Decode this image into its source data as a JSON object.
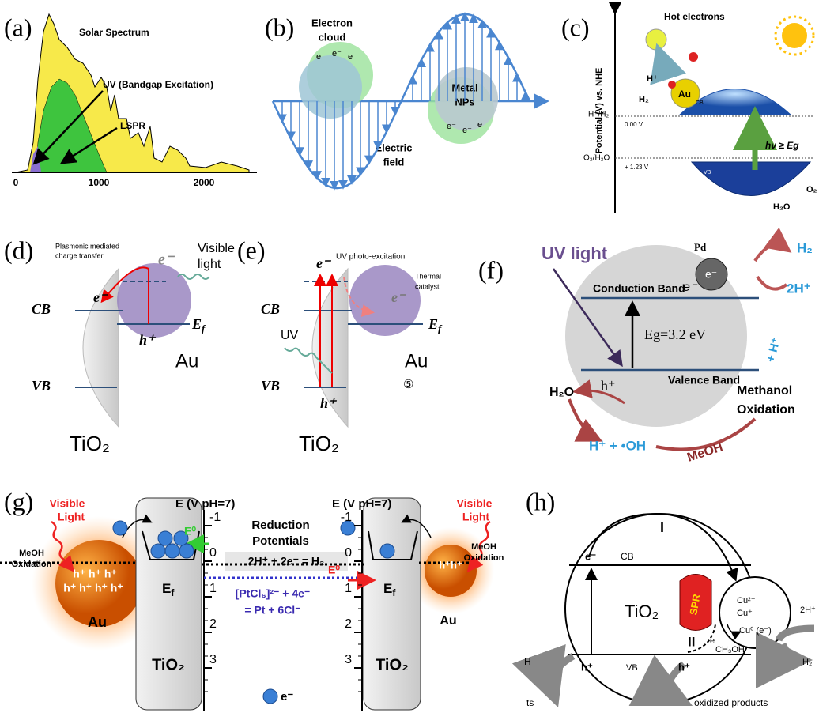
{
  "a": {
    "label": "(a)",
    "title": "Solar Spectrum",
    "uv": "UV (Bandgap Excitation)",
    "lspr": "LSPR",
    "ticks": [
      0,
      1000,
      2000
    ]
  },
  "b": {
    "label": "(b)",
    "cloud": [
      "Electron",
      "cloud"
    ],
    "field": [
      "Electric",
      "field"
    ],
    "nps": [
      "Metal",
      "NPs"
    ],
    "electron": "e⁻"
  },
  "c": {
    "label": "(c)",
    "hot": "Hot electrons",
    "h_plus": "H⁺",
    "h2": "H₂",
    "au": "Au",
    "cb": "CB",
    "axis": "Potential (V) vs. NHE",
    "h_couple": "H⁺/H₂",
    "h_pot": "0.00 V",
    "o_couple": "O₂/H₂O",
    "o_pot": "+ 1.23 V",
    "photon": "hν ≥ Eg",
    "vb": "VB",
    "o2": "O₂",
    "h2o": "H₂O"
  },
  "d": {
    "label": "(d)",
    "note": [
      "Plasmonic mediated",
      "charge transfer"
    ],
    "light": [
      "Visible",
      "light"
    ],
    "e_gray": "e⁻",
    "e_cb": "e⁻",
    "cb": "CB",
    "vb": "VB",
    "hole": "h⁺",
    "ef": [
      "E",
      "f"
    ],
    "metal": "Au",
    "semi": "TiO₂"
  },
  "e": {
    "label": "(e)",
    "uv_exc": "UV photo-excitation",
    "thermal": [
      "Thermal",
      "catalyst"
    ],
    "electron": "e⁻",
    "e_au": "e⁻",
    "cb": "CB",
    "vb": "VB",
    "uv": "UV",
    "hole": "h⁺",
    "ef": [
      "E",
      "f"
    ],
    "metal": "Au",
    "mark": "⑤",
    "semi": "TiO₂"
  },
  "f": {
    "label": "(f)",
    "uv": "UV light",
    "pd": "Pd",
    "h2": "H₂",
    "h_ions": "2H⁺",
    "cb": "Conduction Band",
    "e_cb": "e⁻",
    "e_pd": "e⁻",
    "gap": "Eg=3.2 eV",
    "vb": "Valence Band",
    "hole": "h⁺",
    "water": "H₂O",
    "methanol": [
      "Methanol",
      "Oxidation"
    ],
    "proton": "+ H⁺",
    "products": "H⁺ + •OH",
    "meoh": "MeOH"
  },
  "g": {
    "label": "(g)",
    "light": [
      "Visible",
      "Light"
    ],
    "axis": "E (V pH=7)",
    "scale": [
      -1,
      0,
      1,
      2,
      3
    ],
    "title": [
      "Reduction",
      "Potentials"
    ],
    "e0": "E⁰",
    "h2_reaction": "2H⁺ + 2e⁻ = H₂",
    "pt_reaction": [
      "[PtCl₆]²⁻ + 4e⁻",
      "= Pt + 6Cl⁻"
    ],
    "meoh": [
      "MeOH",
      "Oxidation"
    ],
    "holes_left": [
      "h⁺ h⁺ h⁺",
      "h⁺ h⁺ h⁺ h⁺"
    ],
    "holes_right": "h⁺h⁺",
    "ef": [
      "E",
      "f"
    ],
    "metal": "Au",
    "semi": "TiO₂",
    "electron": "e⁻"
  },
  "h": {
    "label": "(h)",
    "path1": "I",
    "path2": "II",
    "e_cb": "e⁻",
    "cb": "CB",
    "semi": "TiO₂",
    "spr": "SPR",
    "cu2": "Cu²⁺",
    "cu1": "Cu⁺",
    "cu0": "Cu⁰ (e⁻)",
    "e_spr": "e⁻",
    "h_ions": "2H⁺",
    "h2": "H₂",
    "h_left": "H",
    "hole": "h⁺",
    "vb": "VB",
    "methanol": "CH₃OH",
    "ts": "ts",
    "oxidized": "oxidized products"
  }
}
